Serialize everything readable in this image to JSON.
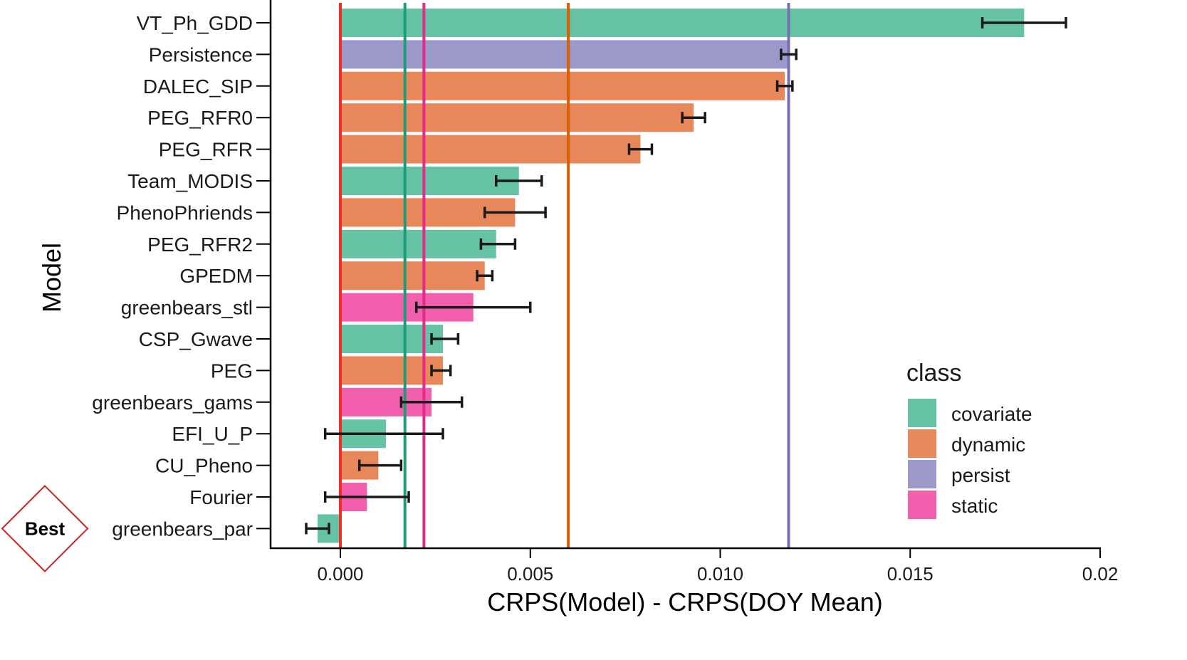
{
  "chart_data": {
    "type": "bar",
    "orientation": "horizontal",
    "xlabel": "CRPS(Model) - CRPS(DOY Mean)",
    "ylabel": "Model",
    "xlim": [
      -0.0018,
      0.02
    ],
    "x_ticks": [
      0.0,
      0.005,
      0.01,
      0.015,
      0.02
    ],
    "x_tick_labels": [
      "0.000",
      "0.005",
      "0.010",
      "0.015",
      "0.02"
    ],
    "grid": false,
    "legend": {
      "title": "class",
      "placement": "right",
      "entries": [
        {
          "name": "covariate",
          "color": "#66C2A5"
        },
        {
          "name": "dynamic",
          "color": "#E8875A"
        },
        {
          "name": "persist",
          "color": "#9A99CA"
        },
        {
          "name": "static",
          "color": "#F25FAD"
        }
      ]
    },
    "bars": [
      {
        "model": "VT_Ph_GDD",
        "class": "covariate",
        "value": 0.018,
        "err_low": 0.0169,
        "err_high": 0.0191
      },
      {
        "model": "Persistence",
        "class": "persist",
        "value": 0.0118,
        "err_low": 0.0116,
        "err_high": 0.012
      },
      {
        "model": "DALEC_SIP",
        "class": "dynamic",
        "value": 0.0117,
        "err_low": 0.0115,
        "err_high": 0.0119
      },
      {
        "model": "PEG_RFR0",
        "class": "dynamic",
        "value": 0.0093,
        "err_low": 0.009,
        "err_high": 0.0096
      },
      {
        "model": "PEG_RFR",
        "class": "dynamic",
        "value": 0.0079,
        "err_low": 0.0076,
        "err_high": 0.0082
      },
      {
        "model": "Team_MODIS",
        "class": "covariate",
        "value": 0.0047,
        "err_low": 0.0041,
        "err_high": 0.0053
      },
      {
        "model": "PhenoPhriends",
        "class": "dynamic",
        "value": 0.0046,
        "err_low": 0.0038,
        "err_high": 0.0054
      },
      {
        "model": "PEG_RFR2",
        "class": "covariate",
        "value": 0.0041,
        "err_low": 0.0037,
        "err_high": 0.0046
      },
      {
        "model": "GPEDM",
        "class": "dynamic",
        "value": 0.0038,
        "err_low": 0.0036,
        "err_high": 0.004
      },
      {
        "model": "greenbears_stl",
        "class": "static",
        "value": 0.0035,
        "err_low": 0.002,
        "err_high": 0.005
      },
      {
        "model": "CSP_Gwave",
        "class": "covariate",
        "value": 0.0027,
        "err_low": 0.0024,
        "err_high": 0.0031
      },
      {
        "model": "PEG",
        "class": "dynamic",
        "value": 0.0027,
        "err_low": 0.0024,
        "err_high": 0.0029
      },
      {
        "model": "greenbears_gams",
        "class": "static",
        "value": 0.0024,
        "err_low": 0.0016,
        "err_high": 0.0032
      },
      {
        "model": "EFI_U_P",
        "class": "covariate",
        "value": 0.0012,
        "err_low": -0.0004,
        "err_high": 0.0027
      },
      {
        "model": "CU_Pheno",
        "class": "dynamic",
        "value": 0.001,
        "err_low": 0.0005,
        "err_high": 0.0016
      },
      {
        "model": "Fourier",
        "class": "static",
        "value": 0.0007,
        "err_low": -0.0004,
        "err_high": 0.0018
      },
      {
        "model": "greenbears_par",
        "class": "covariate",
        "value": -0.0006,
        "err_low": -0.0009,
        "err_high": -0.0003
      }
    ],
    "reference_lines": [
      {
        "value": 0.0,
        "color": "#EE3124"
      },
      {
        "value": 0.0017,
        "color": "#1B9E77"
      },
      {
        "value": 0.0022,
        "color": "#E7298A"
      },
      {
        "value": 0.006,
        "color": "#D95F02"
      },
      {
        "value": 0.0118,
        "color": "#7570B3"
      }
    ],
    "annotation": {
      "text": "Best",
      "target": "greenbears_par",
      "shape": "diamond",
      "color": "#CC2222"
    }
  }
}
